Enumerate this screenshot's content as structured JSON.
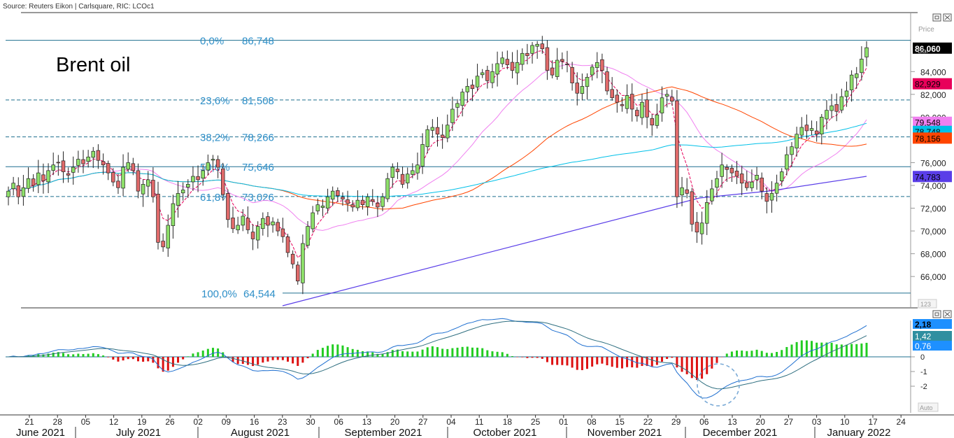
{
  "source": "Source: Reuters Eikon | Carlsquare, RIC: LCOc1",
  "chart_data": {
    "type": "candlestick",
    "title": "Brent oil",
    "price_axis": {
      "label_top": "Price",
      "label_unit": "Bbl",
      "ticks": [
        "84,000",
        "82,000",
        "80,000",
        "76,000",
        "74,000",
        "72,000",
        "70,000",
        "68,000",
        "66,000"
      ],
      "ylim": [
        64.0,
        87.4
      ]
    },
    "last_price": "86,060",
    "value_tags": [
      {
        "value": "82,929",
        "color": "#e8005a"
      },
      {
        "value": "79,548",
        "color": "#f080f0"
      },
      {
        "value": "78,748",
        "color": "#00c0e8"
      },
      {
        "value": "78,156",
        "color": "#ff4500"
      },
      {
        "value": "74,783",
        "color": "#5a3ee8"
      }
    ],
    "fibonacci": [
      {
        "pct": "0,0%",
        "level": "86,748",
        "y": 86.748,
        "style": "solid"
      },
      {
        "pct": "23,6%",
        "level": "81,508",
        "y": 81.508,
        "style": "dashed"
      },
      {
        "pct": "38,2%",
        "level": "78,266",
        "y": 78.266,
        "style": "dashed"
      },
      {
        "pct": "50,0%",
        "level": "75,646",
        "y": 75.646,
        "style": "solid"
      },
      {
        "pct": "61,8%",
        "level": "73,026",
        "y": 73.026,
        "style": "dashed"
      },
      {
        "pct": "100,0%",
        "level": "64,544",
        "y": 64.544,
        "style": "solid"
      }
    ],
    "x_ticks": [
      "21",
      "28",
      "05",
      "12",
      "19",
      "26",
      "02",
      "09",
      "16",
      "23",
      "30",
      "06",
      "13",
      "20",
      "27",
      "04",
      "11",
      "18",
      "25",
      "01",
      "08",
      "15",
      "22",
      "29",
      "06",
      "13",
      "20",
      "27",
      "03",
      "10",
      "17",
      "24"
    ],
    "months": [
      "June 2021",
      "July 2021",
      "August 2021",
      "September 2021",
      "October 2021",
      "November 2021",
      "December 2021",
      "January 2022"
    ],
    "candles_close": [
      73.5,
      74.2,
      73.0,
      73.8,
      74.6,
      74.0,
      75.1,
      74.4,
      75.3,
      75.8,
      76.0,
      75.2,
      74.9,
      75.6,
      76.3,
      75.9,
      76.5,
      77.0,
      76.2,
      75.8,
      75.1,
      74.3,
      73.8,
      75.6,
      76.0,
      75.3,
      73.5,
      74.1,
      74.5,
      73.0,
      69.0,
      68.6,
      70.5,
      72.4,
      73.3,
      73.6,
      74.1,
      74.8,
      74.5,
      75.3,
      76.0,
      76.3,
      75.6,
      73.2,
      71.0,
      70.2,
      70.5,
      71.3,
      70.1,
      69.3,
      70.4,
      71.1,
      70.5,
      70.8,
      70.0,
      69.5,
      68.1,
      67.1,
      65.6,
      68.9,
      70.4,
      71.6,
      72.3,
      72.2,
      73.0,
      73.5,
      73.1,
      72.8,
      72.4,
      72.1,
      72.7,
      72.3,
      73.0,
      72.6,
      72.1,
      73.0,
      74.6,
      75.6,
      75.2,
      74.1,
      75.0,
      75.3,
      75.8,
      77.6,
      78.9,
      79.1,
      78.5,
      78.2,
      79.3,
      80.7,
      81.2,
      82.2,
      82.7,
      82.5,
      83.6,
      83.9,
      83.2,
      84.0,
      84.7,
      85.2,
      84.6,
      84.1,
      84.8,
      85.6,
      85.4,
      86.3,
      86.4,
      86.0,
      84.1,
      83.7,
      85.0,
      84.9,
      84.6,
      83.0,
      82.1,
      82.7,
      83.5,
      84.4,
      84.8,
      84.1,
      82.3,
      81.7,
      81.3,
      81.0,
      81.9,
      80.7,
      80.1,
      81.3,
      80.0,
      79.3,
      80.2,
      81.7,
      82.0,
      81.4,
      73.0,
      73.8,
      73.3,
      70.6,
      69.9,
      70.7,
      72.5,
      73.7,
      74.6,
      75.8,
      75.4,
      75.1,
      74.8,
      74.2,
      73.8,
      74.3,
      74.9,
      73.5,
      72.6,
      73.3,
      74.2,
      75.2,
      76.7,
      77.4,
      78.5,
      79.1,
      78.8,
      79.0,
      78.5,
      80.0,
      80.6,
      81.0,
      80.5,
      81.8,
      82.3,
      83.7,
      83.8,
      85.1,
      86.1
    ],
    "indicator": {
      "tags": [
        {
          "value": "2,18",
          "color": "#1e90ff"
        },
        {
          "value": "1,42",
          "color": "#2f8fa0"
        },
        {
          "value": "0,76",
          "color": "#1e90ff"
        }
      ],
      "axis_ticks": [
        "0",
        "-1",
        "-2"
      ],
      "ylim": [
        -3.3,
        3.0
      ]
    },
    "corner_labels": [
      "123",
      "Auto"
    ]
  }
}
